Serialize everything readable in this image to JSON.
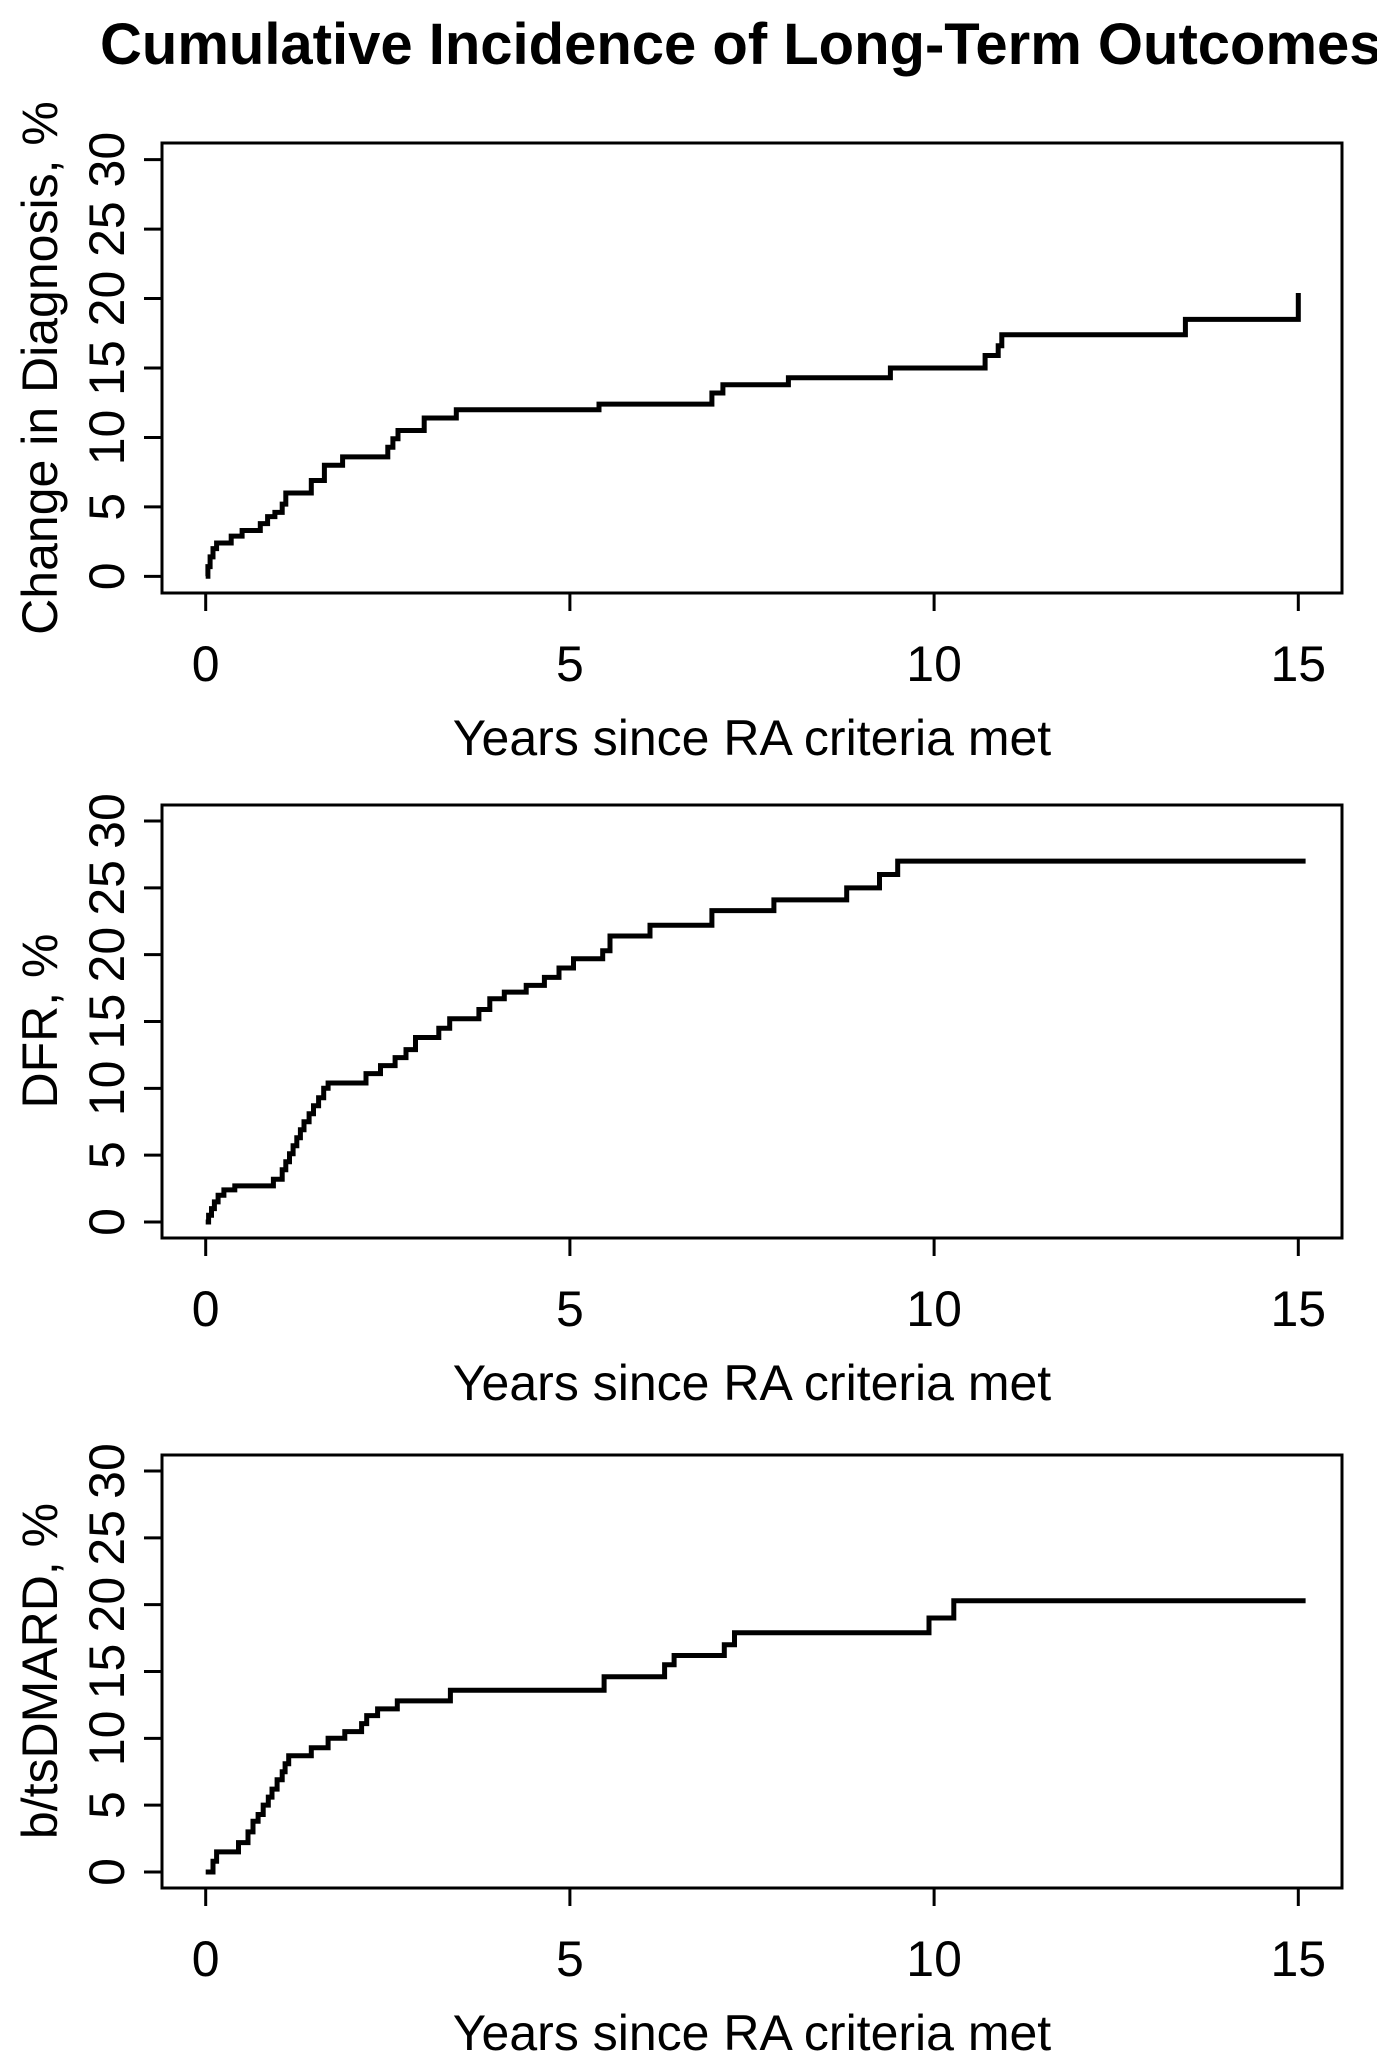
{
  "chart_data": {
    "type": "line",
    "subtype": "step-cumulative-incidence",
    "title": "Cumulative Incidence of Long-Term Outcomes",
    "line_color": "#000000",
    "background_color": "#ffffff",
    "x_range": [
      0,
      15
    ],
    "y_range": [
      0,
      30
    ],
    "grid": "off",
    "legend": "none",
    "panels": [
      {
        "name": "change-in-diagnosis",
        "ylabel": "Change in Diagnosis, %",
        "xlabel": "Years since RA criteria met",
        "x_ticks": [
          0,
          5,
          10,
          15
        ],
        "y_ticks": [
          0,
          5,
          10,
          15,
          20,
          25,
          30
        ],
        "series": [
          [
            0,
            0
          ],
          [
            0.03,
            0.7
          ],
          [
            0.06,
            1.4
          ],
          [
            0.1,
            2.0
          ],
          [
            0.15,
            2.4
          ],
          [
            0.35,
            2.9
          ],
          [
            0.5,
            3.3
          ],
          [
            0.75,
            3.8
          ],
          [
            0.85,
            4.3
          ],
          [
            0.95,
            4.6
          ],
          [
            1.05,
            5.2
          ],
          [
            1.1,
            6.0
          ],
          [
            1.45,
            6.9
          ],
          [
            1.63,
            8.0
          ],
          [
            1.88,
            8.6
          ],
          [
            2.5,
            9.3
          ],
          [
            2.57,
            9.9
          ],
          [
            2.64,
            10.5
          ],
          [
            3.0,
            11.4
          ],
          [
            3.44,
            12.0
          ],
          [
            5.4,
            12.4
          ],
          [
            6.95,
            13.2
          ],
          [
            7.1,
            13.8
          ],
          [
            8.0,
            14.3
          ],
          [
            9.4,
            15.0
          ],
          [
            10.7,
            15.9
          ],
          [
            10.88,
            16.6
          ],
          [
            10.93,
            17.4
          ],
          [
            13.45,
            18.5
          ],
          [
            15.0,
            20.4
          ]
        ]
      },
      {
        "name": "dfr",
        "ylabel": "DFR, %",
        "xlabel": "Years since RA criteria met",
        "x_ticks": [
          0,
          5,
          10,
          15
        ],
        "y_ticks": [
          0,
          5,
          10,
          15,
          20,
          25,
          30
        ],
        "series": [
          [
            0,
            0
          ],
          [
            0.04,
            0.5
          ],
          [
            0.08,
            1.0
          ],
          [
            0.12,
            1.5
          ],
          [
            0.17,
            2.0
          ],
          [
            0.25,
            2.4
          ],
          [
            0.4,
            2.7
          ],
          [
            0.93,
            3.2
          ],
          [
            1.05,
            3.9
          ],
          [
            1.1,
            4.5
          ],
          [
            1.15,
            5.1
          ],
          [
            1.2,
            5.7
          ],
          [
            1.25,
            6.3
          ],
          [
            1.3,
            6.9
          ],
          [
            1.35,
            7.5
          ],
          [
            1.42,
            8.1
          ],
          [
            1.48,
            8.7
          ],
          [
            1.55,
            9.3
          ],
          [
            1.62,
            10.0
          ],
          [
            1.68,
            10.4
          ],
          [
            2.2,
            11.1
          ],
          [
            2.4,
            11.7
          ],
          [
            2.6,
            12.3
          ],
          [
            2.75,
            12.9
          ],
          [
            2.88,
            13.8
          ],
          [
            3.2,
            14.5
          ],
          [
            3.35,
            15.2
          ],
          [
            3.75,
            15.9
          ],
          [
            3.9,
            16.7
          ],
          [
            4.1,
            17.2
          ],
          [
            4.4,
            17.7
          ],
          [
            4.65,
            18.3
          ],
          [
            4.85,
            19.0
          ],
          [
            5.05,
            19.7
          ],
          [
            5.45,
            20.3
          ],
          [
            5.55,
            21.4
          ],
          [
            6.1,
            22.2
          ],
          [
            6.95,
            23.3
          ],
          [
            7.8,
            24.1
          ],
          [
            8.8,
            25.0
          ],
          [
            9.25,
            26.0
          ],
          [
            9.5,
            27.0
          ],
          [
            15.1,
            27.0
          ]
        ]
      },
      {
        "name": "b-tsdmard",
        "ylabel": "b/tsDMARD, %",
        "xlabel": "Years since RA criteria met",
        "x_ticks": [
          0,
          5,
          10,
          15
        ],
        "y_ticks": [
          0,
          5,
          10,
          15,
          20,
          25,
          30
        ],
        "series": [
          [
            0,
            0
          ],
          [
            0.1,
            0.8
          ],
          [
            0.15,
            1.5
          ],
          [
            0.45,
            2.2
          ],
          [
            0.58,
            3.0
          ],
          [
            0.65,
            3.8
          ],
          [
            0.72,
            4.3
          ],
          [
            0.79,
            5.0
          ],
          [
            0.86,
            5.6
          ],
          [
            0.91,
            6.2
          ],
          [
            0.98,
            6.9
          ],
          [
            1.05,
            7.5
          ],
          [
            1.09,
            8.1
          ],
          [
            1.14,
            8.7
          ],
          [
            1.45,
            9.3
          ],
          [
            1.68,
            10.0
          ],
          [
            1.91,
            10.5
          ],
          [
            2.14,
            11.1
          ],
          [
            2.21,
            11.7
          ],
          [
            2.36,
            12.2
          ],
          [
            2.63,
            12.8
          ],
          [
            3.36,
            13.6
          ],
          [
            5.47,
            14.6
          ],
          [
            6.3,
            15.5
          ],
          [
            6.43,
            16.2
          ],
          [
            7.12,
            17.0
          ],
          [
            7.26,
            17.9
          ],
          [
            9.93,
            19.0
          ],
          [
            10.27,
            20.3
          ],
          [
            15.1,
            20.3
          ]
        ]
      }
    ]
  }
}
